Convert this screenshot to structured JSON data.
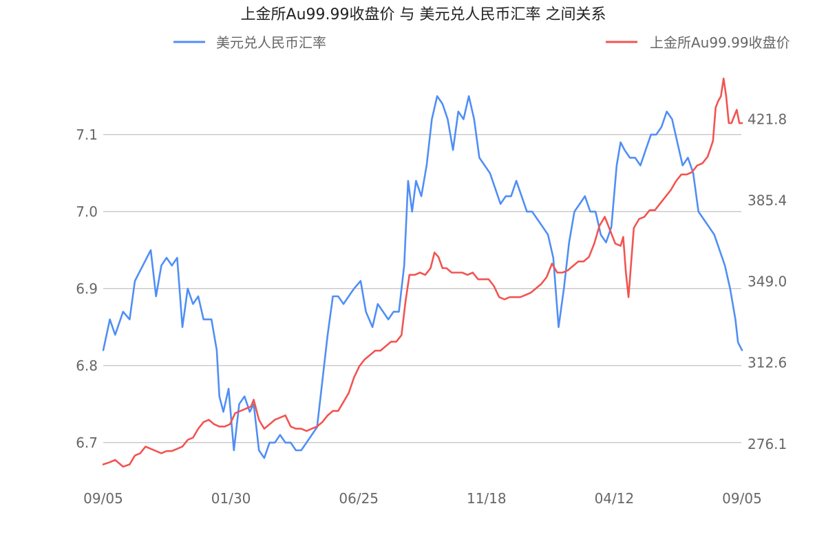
{
  "colors": {
    "usd_cny": "#4f8ef5",
    "gold": "#f25350",
    "grid": "#b4b4b4",
    "text": "#666666",
    "title": "#222222"
  },
  "chart_data": {
    "type": "line",
    "title": "上金所Au99.99收盘价 与 美元兑人民币汇率 之间关系",
    "legend_placement": "top",
    "grid": true,
    "x_ticks": [
      "09/05",
      "01/30",
      "06/25",
      "11/18",
      "04/12",
      "09/05"
    ],
    "y_left": {
      "ticks": [
        6.7,
        6.8,
        6.9,
        7.0,
        7.1
      ],
      "tick_labels": [
        "6.7",
        "6.8",
        "6.9",
        "7.0",
        "7.1"
      ],
      "range": [
        6.665,
        7.165
      ]
    },
    "y_right": {
      "ticks": [
        276.1,
        312.6,
        349.0,
        385.4,
        421.8
      ],
      "tick_labels": [
        "276.1",
        "312.6",
        "349.0",
        "385.4",
        "421.8"
      ],
      "range": [
        264.7,
        437.3
      ]
    },
    "series": [
      {
        "name": "美元兑人民币汇率",
        "axis": "left",
        "color": "#4f8ef5",
        "points": [
          [
            0,
            6.82
          ],
          [
            5,
            6.86
          ],
          [
            9,
            6.84
          ],
          [
            15,
            6.87
          ],
          [
            20,
            6.86
          ],
          [
            24,
            6.91
          ],
          [
            30,
            6.93
          ],
          [
            36,
            6.95
          ],
          [
            40,
            6.89
          ],
          [
            44,
            6.93
          ],
          [
            48,
            6.94
          ],
          [
            52,
            6.93
          ],
          [
            56,
            6.94
          ],
          [
            60,
            6.85
          ],
          [
            64,
            6.9
          ],
          [
            68,
            6.88
          ],
          [
            72,
            6.89
          ],
          [
            76,
            6.86
          ],
          [
            82,
            6.86
          ],
          [
            86,
            6.82
          ],
          [
            88,
            6.76
          ],
          [
            91,
            6.74
          ],
          [
            95,
            6.77
          ],
          [
            99,
            6.69
          ],
          [
            103,
            6.75
          ],
          [
            107,
            6.76
          ],
          [
            111,
            6.74
          ],
          [
            114,
            6.75
          ],
          [
            118,
            6.69
          ],
          [
            122,
            6.68
          ],
          [
            126,
            6.7
          ],
          [
            130,
            6.7
          ],
          [
            134,
            6.71
          ],
          [
            138,
            6.7
          ],
          [
            142,
            6.7
          ],
          [
            146,
            6.69
          ],
          [
            150,
            6.69
          ],
          [
            154,
            6.7
          ],
          [
            158,
            6.71
          ],
          [
            162,
            6.72
          ],
          [
            166,
            6.78
          ],
          [
            170,
            6.84
          ],
          [
            174,
            6.89
          ],
          [
            178,
            6.89
          ],
          [
            182,
            6.88
          ],
          [
            186,
            6.89
          ],
          [
            190,
            6.9
          ],
          [
            195,
            6.91
          ],
          [
            199,
            6.87
          ],
          [
            204,
            6.85
          ],
          [
            208,
            6.88
          ],
          [
            212,
            6.87
          ],
          [
            216,
            6.86
          ],
          [
            220,
            6.87
          ],
          [
            224,
            6.87
          ],
          [
            228,
            6.93
          ],
          [
            231,
            7.04
          ],
          [
            234,
            7.0
          ],
          [
            237,
            7.04
          ],
          [
            241,
            7.02
          ],
          [
            245,
            7.06
          ],
          [
            249,
            7.12
          ],
          [
            253,
            7.15
          ],
          [
            257,
            7.14
          ],
          [
            261,
            7.12
          ],
          [
            265,
            7.08
          ],
          [
            269,
            7.13
          ],
          [
            273,
            7.12
          ],
          [
            277,
            7.15
          ],
          [
            281,
            7.12
          ],
          [
            285,
            7.07
          ],
          [
            289,
            7.06
          ],
          [
            293,
            7.05
          ],
          [
            297,
            7.03
          ],
          [
            301,
            7.01
          ],
          [
            305,
            7.02
          ],
          [
            309,
            7.02
          ],
          [
            313,
            7.04
          ],
          [
            317,
            7.02
          ],
          [
            321,
            7.0
          ],
          [
            325,
            7.0
          ],
          [
            329,
            6.99
          ],
          [
            333,
            6.98
          ],
          [
            337,
            6.97
          ],
          [
            341,
            6.94
          ],
          [
            345,
            6.85
          ],
          [
            349,
            6.9
          ],
          [
            353,
            6.96
          ],
          [
            357,
            7.0
          ],
          [
            361,
            7.01
          ],
          [
            365,
            7.02
          ],
          [
            369,
            7.0
          ],
          [
            373,
            7.0
          ],
          [
            377,
            6.97
          ],
          [
            381,
            6.96
          ],
          [
            385,
            6.98
          ],
          [
            389,
            7.06
          ],
          [
            392,
            7.09
          ],
          [
            395,
            7.08
          ],
          [
            399,
            7.07
          ],
          [
            403,
            7.07
          ],
          [
            407,
            7.06
          ],
          [
            411,
            7.08
          ],
          [
            415,
            7.1
          ],
          [
            419,
            7.1
          ],
          [
            423,
            7.11
          ],
          [
            427,
            7.13
          ],
          [
            431,
            7.12
          ],
          [
            435,
            7.09
          ],
          [
            439,
            7.06
          ],
          [
            443,
            7.07
          ],
          [
            447,
            7.05
          ],
          [
            451,
            7.0
          ],
          [
            455,
            6.99
          ],
          [
            459,
            6.98
          ],
          [
            463,
            6.97
          ],
          [
            467,
            6.95
          ],
          [
            471,
            6.93
          ],
          [
            475,
            6.9
          ],
          [
            479,
            6.86
          ],
          [
            481,
            6.83
          ],
          [
            484,
            6.82
          ]
        ]
      },
      {
        "name": "上金所Au99.99收盘价",
        "axis": "right",
        "color": "#f25350",
        "points": [
          [
            0,
            267
          ],
          [
            5,
            268
          ],
          [
            9,
            269
          ],
          [
            15,
            266
          ],
          [
            20,
            267
          ],
          [
            24,
            271
          ],
          [
            28,
            272
          ],
          [
            32,
            275
          ],
          [
            36,
            274
          ],
          [
            40,
            273
          ],
          [
            44,
            272
          ],
          [
            48,
            273
          ],
          [
            52,
            273
          ],
          [
            56,
            274
          ],
          [
            60,
            275
          ],
          [
            64,
            278
          ],
          [
            68,
            279
          ],
          [
            72,
            283
          ],
          [
            76,
            286
          ],
          [
            80,
            287
          ],
          [
            84,
            285
          ],
          [
            88,
            284
          ],
          [
            92,
            284
          ],
          [
            96,
            285
          ],
          [
            100,
            290
          ],
          [
            104,
            291
          ],
          [
            108,
            292
          ],
          [
            112,
            293
          ],
          [
            114,
            296
          ],
          [
            118,
            287
          ],
          [
            122,
            283
          ],
          [
            126,
            285
          ],
          [
            130,
            287
          ],
          [
            134,
            288
          ],
          [
            138,
            289
          ],
          [
            142,
            284
          ],
          [
            146,
            283
          ],
          [
            150,
            283
          ],
          [
            154,
            282
          ],
          [
            158,
            283
          ],
          [
            162,
            284
          ],
          [
            166,
            286
          ],
          [
            170,
            289
          ],
          [
            174,
            291
          ],
          [
            178,
            291
          ],
          [
            182,
            295
          ],
          [
            186,
            299
          ],
          [
            190,
            306
          ],
          [
            194,
            311
          ],
          [
            198,
            314
          ],
          [
            202,
            316
          ],
          [
            206,
            318
          ],
          [
            210,
            318
          ],
          [
            214,
            320
          ],
          [
            218,
            322
          ],
          [
            222,
            322
          ],
          [
            226,
            325
          ],
          [
            229,
            340
          ],
          [
            232,
            352
          ],
          [
            236,
            352
          ],
          [
            240,
            353
          ],
          [
            244,
            352
          ],
          [
            248,
            355
          ],
          [
            251,
            362
          ],
          [
            254,
            360
          ],
          [
            257,
            355
          ],
          [
            260,
            355
          ],
          [
            264,
            353
          ],
          [
            268,
            353
          ],
          [
            272,
            353
          ],
          [
            276,
            352
          ],
          [
            280,
            353
          ],
          [
            284,
            350
          ],
          [
            288,
            350
          ],
          [
            292,
            350
          ],
          [
            296,
            347
          ],
          [
            300,
            342
          ],
          [
            304,
            341
          ],
          [
            308,
            342
          ],
          [
            312,
            342
          ],
          [
            316,
            342
          ],
          [
            320,
            343
          ],
          [
            324,
            344
          ],
          [
            328,
            346
          ],
          [
            332,
            348
          ],
          [
            336,
            351
          ],
          [
            340,
            357
          ],
          [
            344,
            353
          ],
          [
            348,
            353
          ],
          [
            352,
            354
          ],
          [
            356,
            356
          ],
          [
            360,
            358
          ],
          [
            364,
            358
          ],
          [
            368,
            360
          ],
          [
            372,
            366
          ],
          [
            376,
            374
          ],
          [
            380,
            378
          ],
          [
            384,
            372
          ],
          [
            388,
            366
          ],
          [
            392,
            365
          ],
          [
            394,
            369
          ],
          [
            396,
            353
          ],
          [
            398,
            342
          ],
          [
            402,
            373
          ],
          [
            406,
            377
          ],
          [
            410,
            378
          ],
          [
            414,
            381
          ],
          [
            418,
            381
          ],
          [
            422,
            384
          ],
          [
            426,
            387
          ],
          [
            430,
            390
          ],
          [
            434,
            394
          ],
          [
            438,
            397
          ],
          [
            442,
            397
          ],
          [
            446,
            398
          ],
          [
            450,
            401
          ],
          [
            454,
            402
          ],
          [
            458,
            405
          ],
          [
            462,
            412
          ],
          [
            464,
            427
          ],
          [
            466,
            430
          ],
          [
            468,
            432
          ],
          [
            470,
            440
          ],
          [
            472,
            432
          ],
          [
            474,
            420
          ],
          [
            476,
            420
          ],
          [
            478,
            423
          ],
          [
            480,
            426
          ],
          [
            482,
            420
          ],
          [
            484,
            420
          ]
        ]
      }
    ]
  }
}
